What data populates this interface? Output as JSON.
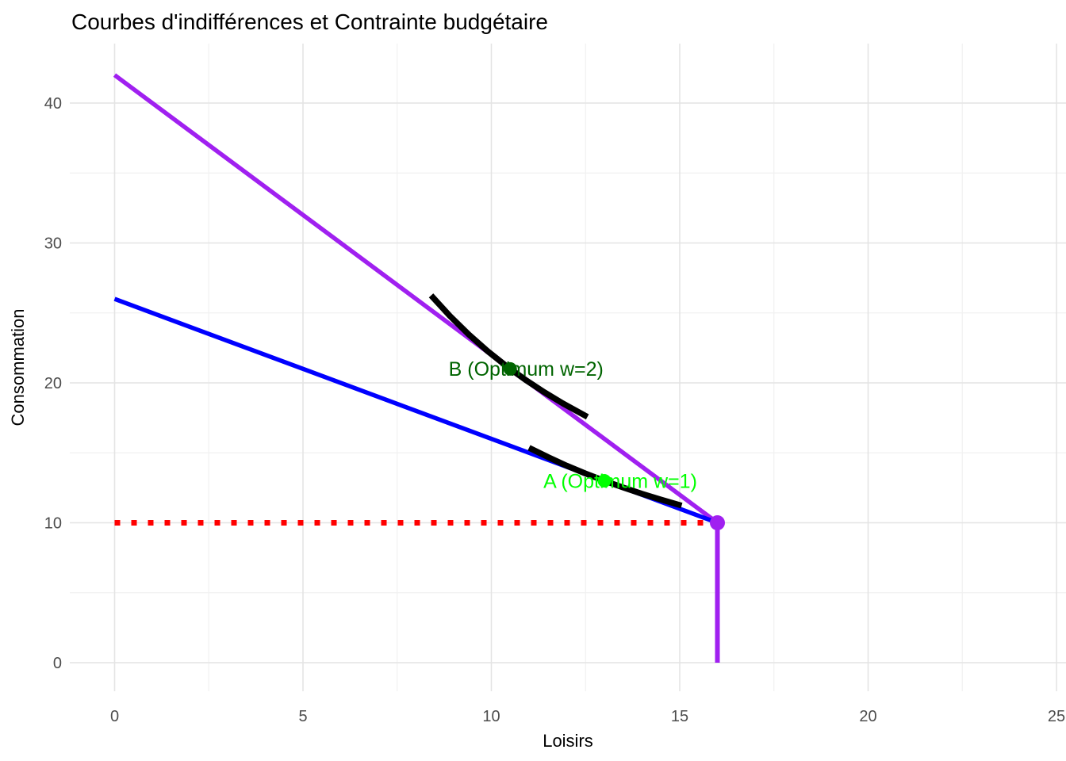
{
  "chart_data": {
    "type": "line",
    "title": "Courbes d'indifférences et Contrainte budgétaire",
    "xlabel": "Loisirs",
    "ylabel": "Consommation",
    "x_ticks": [
      0,
      5,
      10,
      15,
      20,
      25
    ],
    "x_minor_ticks": [
      2.5,
      7.5,
      12.5,
      17.5,
      22.5
    ],
    "y_ticks": [
      0,
      10,
      20,
      30,
      40
    ],
    "y_minor_ticks": [
      5,
      15,
      25,
      35
    ],
    "xlim": [
      -1.2,
      25.3
    ],
    "ylim": [
      -2.1,
      44.3
    ],
    "grid": "on",
    "legend": "none",
    "background": "#ffffff",
    "grid_major_color": "#e4e4e4",
    "grid_minor_color": "#f1f1f1",
    "tick_label_color": "#4d4d4d",
    "series": [
      {
        "name": "budget-line-w2",
        "color": "#A020F0",
        "width": 5.5,
        "dash": "",
        "points": [
          [
            0,
            42
          ],
          [
            16,
            10
          ]
        ]
      },
      {
        "name": "budget-vertical-segment",
        "color": "#A020F0",
        "width": 6,
        "dash": "",
        "points": [
          [
            16,
            10
          ],
          [
            16,
            0
          ]
        ]
      },
      {
        "name": "budget-line-w1",
        "color": "#0000FF",
        "width": 5.5,
        "dash": "",
        "points": [
          [
            0,
            26
          ],
          [
            16,
            10
          ]
        ]
      },
      {
        "name": "reservation-consumption-line",
        "color": "#FF0000",
        "width": 7,
        "dash": "7 14",
        "points": [
          [
            0,
            10
          ],
          [
            15.7,
            10
          ]
        ]
      },
      {
        "name": "indifference-curve-w2",
        "color": "#000000",
        "width": 7.5,
        "dash": "",
        "points": [
          [
            8.4,
            26.25
          ],
          [
            8.9,
            24.78
          ],
          [
            9.4,
            23.46
          ],
          [
            9.9,
            22.27
          ],
          [
            10.4,
            21.2
          ],
          [
            10.9,
            20.23
          ],
          [
            11.4,
            19.34
          ],
          [
            11.9,
            18.53
          ],
          [
            12.55,
            17.57
          ]
        ]
      },
      {
        "name": "indifference-curve-w1",
        "color": "#000000",
        "width": 7.5,
        "dash": "",
        "points": [
          [
            11,
            15.36
          ],
          [
            11.5,
            14.7
          ],
          [
            12,
            14.08
          ],
          [
            12.5,
            13.52
          ],
          [
            13,
            13.0
          ],
          [
            13.5,
            12.52
          ],
          [
            14,
            12.07
          ],
          [
            14.5,
            11.66
          ],
          [
            15.05,
            11.23
          ]
        ]
      }
    ],
    "points": [
      {
        "name": "optimum-point-b",
        "x": 10.5,
        "y": 21,
        "color": "#006400",
        "r": 8.5
      },
      {
        "name": "optimum-point-a",
        "x": 13,
        "y": 13,
        "color": "#00FF00",
        "r": 8.5
      },
      {
        "name": "budget-kink-point",
        "x": 16,
        "y": 10,
        "color": "#A020F0",
        "r": 9.5
      }
    ],
    "annotations": [
      {
        "name": "label-optimum-b",
        "text": "B (Optimum w=2)",
        "x": 10.5,
        "y": 21,
        "color": "#006400"
      },
      {
        "name": "label-optimum-a",
        "text": "A (Optimum w=1)",
        "x": 13,
        "y": 13,
        "color": "#00FF00"
      }
    ]
  }
}
